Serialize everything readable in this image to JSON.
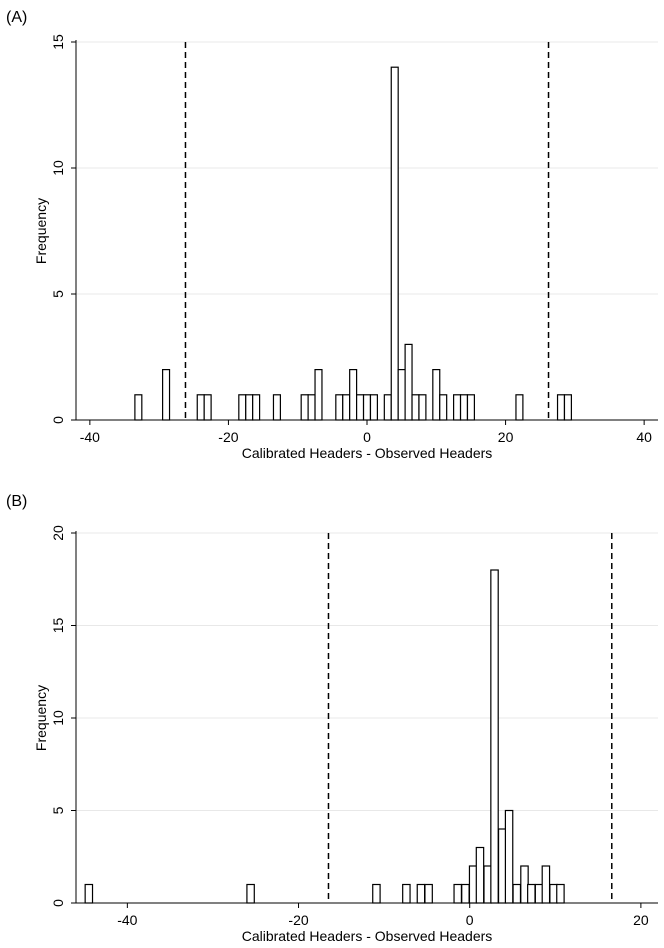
{
  "chart_data": [
    {
      "panel_label": "(A)",
      "type": "bar",
      "xlabel": "Calibrated Headers - Observed Headers",
      "ylabel": "Frequency",
      "xlim": [
        -42,
        42
      ],
      "ylim": [
        0,
        15
      ],
      "xticks": [
        -40,
        -20,
        0,
        20,
        40
      ],
      "yticks": [
        0,
        5,
        10,
        15
      ],
      "bin_width": 1,
      "grid": true,
      "vlines": [
        -26.2,
        26.2
      ],
      "bins": [
        {
          "x": -33,
          "value": 1
        },
        {
          "x": -29,
          "value": 2
        },
        {
          "x": -24,
          "value": 1
        },
        {
          "x": -23,
          "value": 1
        },
        {
          "x": -18,
          "value": 1
        },
        {
          "x": -17,
          "value": 1
        },
        {
          "x": -16,
          "value": 1
        },
        {
          "x": -13,
          "value": 1
        },
        {
          "x": -9,
          "value": 1
        },
        {
          "x": -8,
          "value": 1
        },
        {
          "x": -7,
          "value": 2
        },
        {
          "x": -4,
          "value": 1
        },
        {
          "x": -3,
          "value": 1
        },
        {
          "x": -2,
          "value": 2
        },
        {
          "x": -1,
          "value": 1
        },
        {
          "x": 0,
          "value": 1
        },
        {
          "x": 1,
          "value": 1
        },
        {
          "x": 3,
          "value": 1
        },
        {
          "x": 4,
          "value": 14
        },
        {
          "x": 5,
          "value": 2
        },
        {
          "x": 6,
          "value": 3
        },
        {
          "x": 7,
          "value": 1
        },
        {
          "x": 8,
          "value": 1
        },
        {
          "x": 10,
          "value": 2
        },
        {
          "x": 11,
          "value": 1
        },
        {
          "x": 13,
          "value": 1
        },
        {
          "x": 14,
          "value": 1
        },
        {
          "x": 15,
          "value": 1
        },
        {
          "x": 22,
          "value": 1
        },
        {
          "x": 28,
          "value": 1
        },
        {
          "x": 29,
          "value": 1
        }
      ]
    },
    {
      "panel_label": "(B)",
      "type": "bar",
      "xlabel": "Calibrated Headers - Observed Headers",
      "ylabel": "Frequency",
      "xlim": [
        -46,
        22
      ],
      "ylim": [
        0,
        20
      ],
      "xticks": [
        -40,
        -20,
        0,
        20
      ],
      "yticks": [
        0,
        5,
        10,
        15,
        20
      ],
      "bin_width": 0.86,
      "grid": true,
      "vlines": [
        -16.5,
        16.6
      ],
      "bins": [
        {
          "x": -44.5,
          "value": 1
        },
        {
          "x": -25.6,
          "value": 1
        },
        {
          "x": -10.9,
          "value": 1
        },
        {
          "x": -7.4,
          "value": 1
        },
        {
          "x": -5.7,
          "value": 1
        },
        {
          "x": -4.8,
          "value": 1
        },
        {
          "x": -1.4,
          "value": 1
        },
        {
          "x": -0.5,
          "value": 1
        },
        {
          "x": 0.4,
          "value": 2
        },
        {
          "x": 1.2,
          "value": 3
        },
        {
          "x": 2.1,
          "value": 2
        },
        {
          "x": 2.9,
          "value": 18
        },
        {
          "x": 3.8,
          "value": 4
        },
        {
          "x": 4.6,
          "value": 5
        },
        {
          "x": 5.5,
          "value": 1
        },
        {
          "x": 6.4,
          "value": 2
        },
        {
          "x": 7.2,
          "value": 1
        },
        {
          "x": 8.1,
          "value": 1
        },
        {
          "x": 8.9,
          "value": 2
        },
        {
          "x": 9.8,
          "value": 1
        },
        {
          "x": 10.6,
          "value": 1
        }
      ]
    }
  ]
}
